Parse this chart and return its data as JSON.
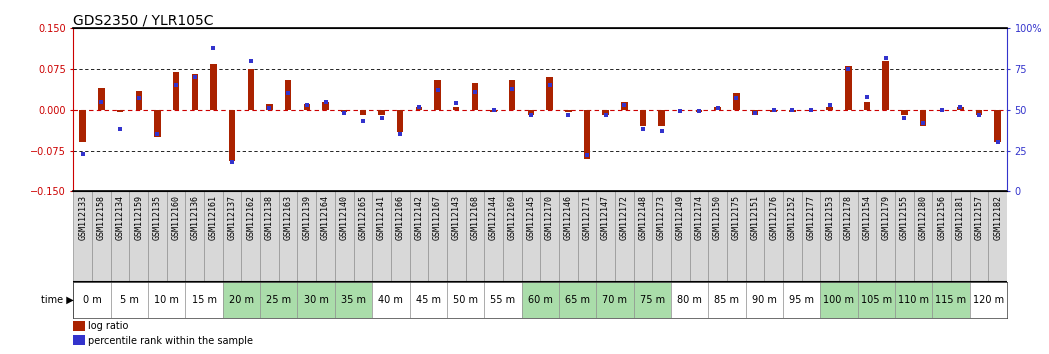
{
  "title": "GDS2350 / YLR105C",
  "samples": [
    "GSM112133",
    "GSM112158",
    "GSM112134",
    "GSM112159",
    "GSM112135",
    "GSM112160",
    "GSM112136",
    "GSM112161",
    "GSM112137",
    "GSM112162",
    "GSM112138",
    "GSM112163",
    "GSM112139",
    "GSM112164",
    "GSM112140",
    "GSM112165",
    "GSM112141",
    "GSM112166",
    "GSM112142",
    "GSM112167",
    "GSM112143",
    "GSM112168",
    "GSM112144",
    "GSM112169",
    "GSM112145",
    "GSM112170",
    "GSM112146",
    "GSM112171",
    "GSM112147",
    "GSM112172",
    "GSM112148",
    "GSM112173",
    "GSM112149",
    "GSM112174",
    "GSM112150",
    "GSM112175",
    "GSM112151",
    "GSM112176",
    "GSM112152",
    "GSM112177",
    "GSM112153",
    "GSM112178",
    "GSM112154",
    "GSM112179",
    "GSM112155",
    "GSM112180",
    "GSM112156",
    "GSM112181",
    "GSM112157",
    "GSM112182"
  ],
  "log_ratio": [
    -0.06,
    0.04,
    -0.005,
    0.035,
    -0.05,
    0.07,
    0.065,
    0.085,
    -0.095,
    0.075,
    0.01,
    0.055,
    0.01,
    0.015,
    -0.005,
    -0.01,
    -0.01,
    -0.04,
    0.005,
    0.055,
    0.005,
    0.05,
    -0.005,
    0.055,
    -0.01,
    0.06,
    -0.005,
    -0.09,
    -0.01,
    0.015,
    -0.03,
    -0.03,
    0.0,
    -0.005,
    0.005,
    0.03,
    -0.01,
    -0.005,
    -0.005,
    0.0,
    0.005,
    0.08,
    0.015,
    0.09,
    -0.01,
    -0.03,
    0.0,
    0.005,
    -0.01,
    -0.06
  ],
  "percentile_rank": [
    23,
    55,
    38,
    57,
    35,
    65,
    70,
    88,
    18,
    80,
    51,
    60,
    53,
    55,
    48,
    43,
    45,
    35,
    52,
    62,
    54,
    61,
    50,
    63,
    47,
    65,
    47,
    22,
    47,
    53,
    38,
    37,
    49,
    49,
    51,
    57,
    48,
    50,
    50,
    50,
    53,
    75,
    58,
    82,
    45,
    42,
    50,
    52,
    47,
    30
  ],
  "time_labels": [
    "0 m",
    "5 m",
    "10 m",
    "15 m",
    "20 m",
    "25 m",
    "30 m",
    "35 m",
    "40 m",
    "45 m",
    "50 m",
    "55 m",
    "60 m",
    "65 m",
    "70 m",
    "75 m",
    "80 m",
    "85 m",
    "90 m",
    "95 m",
    "100 m",
    "105 m",
    "110 m",
    "115 m",
    "120 m"
  ],
  "time_group_colors": [
    "#ffffff",
    "#ffffff",
    "#ffffff",
    "#ffffff",
    "#aaddaa",
    "#aaddaa",
    "#aaddaa",
    "#aaddaa",
    "#ffffff",
    "#ffffff",
    "#ffffff",
    "#ffffff",
    "#aaddaa",
    "#aaddaa",
    "#aaddaa",
    "#aaddaa",
    "#ffffff",
    "#ffffff",
    "#ffffff",
    "#ffffff",
    "#aaddaa",
    "#aaddaa",
    "#aaddaa",
    "#aaddaa",
    "#ffffff"
  ],
  "ylim": [
    -0.15,
    0.15
  ],
  "y2lim": [
    0,
    100
  ],
  "yticks_left": [
    -0.15,
    -0.075,
    0,
    0.075,
    0.15
  ],
  "yticks_right": [
    0,
    25,
    50,
    75,
    100
  ],
  "hlines": [
    0.075,
    -0.075,
    0.0
  ],
  "bar_color": "#aa2200",
  "dot_color": "#3333cc",
  "bg_color_plot": "#ffffff",
  "bg_color_sample": "#d8d8d8",
  "zero_line_color": "#cc0000",
  "title_fontsize": 10,
  "tick_fontsize": 7,
  "sample_fontsize": 6,
  "time_fontsize": 7,
  "legend_fontsize": 7
}
